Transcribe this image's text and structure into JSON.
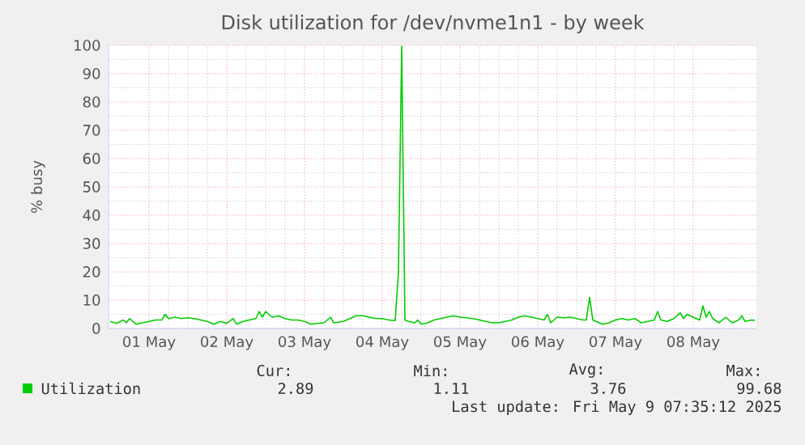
{
  "chart_data": {
    "type": "line",
    "title": "Disk utilization for /dev/nvme1n1 - by week",
    "ylabel": "% busy",
    "x": [
      "2025-05-01T00:00",
      "2025-05-01T02:00",
      "2025-05-01T04:00",
      "2025-05-01T05:00",
      "2025-05-01T06:00",
      "2025-05-01T08:00",
      "2025-05-01T10:00",
      "2025-05-01T12:00",
      "2025-05-01T14:00",
      "2025-05-01T16:00",
      "2025-05-01T17:00",
      "2025-05-01T18:00",
      "2025-05-01T20:00",
      "2025-05-01T22:00",
      "2025-05-02T00:00",
      "2025-05-02T02:00",
      "2025-05-02T04:00",
      "2025-05-02T06:00",
      "2025-05-02T08:00",
      "2025-05-02T10:00",
      "2025-05-02T12:00",
      "2025-05-02T14:00",
      "2025-05-02T15:00",
      "2025-05-02T17:00",
      "2025-05-02T19:00",
      "2025-05-02T21:00",
      "2025-05-02T22:00",
      "2025-05-02T23:00",
      "2025-05-03T00:00",
      "2025-05-03T02:00",
      "2025-05-03T04:00",
      "2025-05-03T06:00",
      "2025-05-03T08:00",
      "2025-05-03T10:00",
      "2025-05-03T12:00",
      "2025-05-03T14:00",
      "2025-05-03T16:00",
      "2025-05-03T18:00",
      "2025-05-03T20:00",
      "2025-05-03T21:00",
      "2025-05-04T00:00",
      "2025-05-04T02:00",
      "2025-05-04T04:00",
      "2025-05-04T06:00",
      "2025-05-04T08:00",
      "2025-05-04T10:00",
      "2025-05-04T12:00",
      "2025-05-04T14:00",
      "2025-05-04T16:00",
      "2025-05-04T17:00",
      "2025-05-04T18:00",
      "2025-05-04T19:00",
      "2025-05-04T20:00",
      "2025-05-04T22:00",
      "2025-05-04T23:00",
      "2025-05-05T00:00",
      "2025-05-05T02:00",
      "2025-05-05T04:00",
      "2025-05-05T06:00",
      "2025-05-05T08:00",
      "2025-05-05T10:00",
      "2025-05-05T12:00",
      "2025-05-05T14:00",
      "2025-05-05T16:00",
      "2025-05-05T18:00",
      "2025-05-05T20:00",
      "2025-05-05T22:00",
      "2025-05-06T00:00",
      "2025-05-06T02:00",
      "2025-05-06T04:00",
      "2025-05-06T06:00",
      "2025-05-06T08:00",
      "2025-05-06T10:00",
      "2025-05-06T12:00",
      "2025-05-06T14:00",
      "2025-05-06T15:00",
      "2025-05-06T16:00",
      "2025-05-06T18:00",
      "2025-05-06T20:00",
      "2025-05-06T22:00",
      "2025-05-07T00:00",
      "2025-05-07T02:00",
      "2025-05-07T03:00",
      "2025-05-07T04:00",
      "2025-05-07T05:00",
      "2025-05-07T06:00",
      "2025-05-07T08:00",
      "2025-05-07T10:00",
      "2025-05-07T12:00",
      "2025-05-07T14:00",
      "2025-05-07T16:00",
      "2025-05-07T18:00",
      "2025-05-07T20:00",
      "2025-05-07T22:00",
      "2025-05-08T00:00",
      "2025-05-08T01:00",
      "2025-05-08T02:00",
      "2025-05-08T04:00",
      "2025-05-08T06:00",
      "2025-05-08T08:00",
      "2025-05-08T09:00",
      "2025-05-08T10:00",
      "2025-05-08T12:00",
      "2025-05-08T14:00",
      "2025-05-08T15:00",
      "2025-05-08T16:00",
      "2025-05-08T17:00",
      "2025-05-08T18:00",
      "2025-05-08T20:00",
      "2025-05-08T22:00",
      "2025-05-09T00:00",
      "2025-05-09T02:00",
      "2025-05-09T03:00",
      "2025-05-09T04:00",
      "2025-05-09T06:00",
      "2025-05-09T07:00"
    ],
    "series": [
      {
        "name": "Utilization",
        "color": "#00cc00",
        "values": [
          2.5,
          1.8,
          3,
          2,
          3.5,
          1.5,
          2,
          2.5,
          3,
          3,
          5,
          3.5,
          4,
          3.5,
          3.8,
          3.5,
          3,
          2.5,
          1.5,
          2.5,
          1.8,
          3.5,
          1.5,
          2.5,
          3,
          3.5,
          6,
          4,
          6,
          4,
          4.5,
          3.5,
          3,
          3,
          2.5,
          1.5,
          1.8,
          2,
          4,
          2,
          2.5,
          3.5,
          4.5,
          4.5,
          4,
          3.5,
          3.5,
          3,
          2.8,
          20,
          99.7,
          3,
          2.5,
          2,
          3,
          1.5,
          2,
          3,
          3.5,
          4,
          4.5,
          4,
          3.8,
          3.5,
          3,
          2.5,
          2,
          2,
          2.5,
          3,
          4,
          4.5,
          4,
          3.5,
          3,
          5,
          2,
          4,
          3.8,
          4,
          3.5,
          3,
          3,
          11,
          3,
          2.5,
          1.5,
          2,
          3,
          3.5,
          3,
          3.5,
          2,
          2.5,
          3,
          6,
          3,
          2.5,
          3.5,
          5.5,
          3.5,
          5,
          4,
          3,
          8,
          4,
          6,
          3.5,
          2,
          4,
          2,
          3,
          4.5,
          2.5,
          3,
          2.9
        ]
      }
    ],
    "xlim": [
      "2025-04-30T23:30",
      "2025-05-09T07:30"
    ],
    "xticks": [
      {
        "value": "2025-05-01T12:00",
        "label": "01 May"
      },
      {
        "value": "2025-05-02T12:00",
        "label": "02 May"
      },
      {
        "value": "2025-05-03T12:00",
        "label": "03 May"
      },
      {
        "value": "2025-05-04T12:00",
        "label": "04 May"
      },
      {
        "value": "2025-05-05T12:00",
        "label": "05 May"
      },
      {
        "value": "2025-05-06T12:00",
        "label": "06 May"
      },
      {
        "value": "2025-05-07T12:00",
        "label": "07 May"
      },
      {
        "value": "2025-05-08T12:00",
        "label": "08 May"
      }
    ],
    "ylim": [
      0,
      100
    ],
    "yticks": [
      0,
      10,
      20,
      30,
      40,
      50,
      60,
      70,
      80,
      90,
      100
    ],
    "grid": true,
    "legend": "bottom left",
    "annotations": [
      "Cur:",
      "Min:",
      "Avg:",
      "Max:",
      "2.89",
      "1.11",
      "3.76",
      "99.68",
      "Last update: Fri May  9 07:35:12 2025"
    ]
  }
}
